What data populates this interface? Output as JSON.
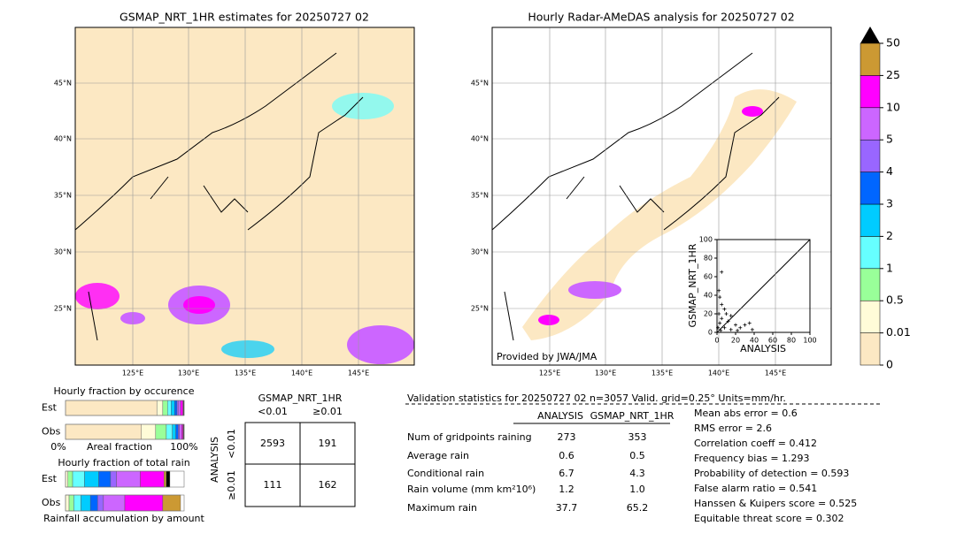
{
  "left_map": {
    "title": "GSMAP_NRT_1HR estimates for 20250727 02",
    "lat_labels": [
      "45°N",
      "40°N",
      "35°N",
      "30°N",
      "25°N"
    ],
    "lon_labels": [
      "125°E",
      "130°E",
      "135°E",
      "140°E",
      "145°E"
    ]
  },
  "right_map": {
    "title": "Hourly Radar-AMeDAS analysis for 20250727 02",
    "lat_labels": [
      "45°N",
      "40°N",
      "35°N",
      "30°N",
      "25°N"
    ],
    "lon_labels": [
      "125°E",
      "130°E",
      "135°E",
      "140°E",
      "145°E"
    ],
    "credit": "Provided by JWA/JMA"
  },
  "colorbar": {
    "labels": [
      "0",
      "0.01",
      "0.5",
      "1",
      "2",
      "3",
      "4",
      "5",
      "10",
      "25",
      "50"
    ],
    "colors": [
      "#fce8c3",
      "#fffcd8",
      "#99ff99",
      "#66ffff",
      "#00ccff",
      "#0066ff",
      "#9966ff",
      "#cc66ff",
      "#ff00ff",
      "#cc9933"
    ],
    "over_color": "#000000"
  },
  "scatter": {
    "type": "scatter",
    "x_label": "ANALYSIS",
    "y_label": "GSMAP_NRT_1HR",
    "xlim": [
      0,
      100
    ],
    "ylim": [
      0,
      100
    ],
    "xticks": [
      0,
      20,
      40,
      60,
      80,
      100
    ],
    "yticks": [
      0,
      20,
      40,
      60,
      80,
      100
    ],
    "x": [
      5,
      2,
      3,
      5,
      8,
      2,
      10,
      5,
      15,
      3,
      12,
      20,
      25,
      30,
      35,
      8,
      15,
      4,
      22,
      1,
      38
    ],
    "y": [
      65,
      45,
      38,
      30,
      25,
      20,
      20,
      15,
      18,
      10,
      12,
      8,
      5,
      8,
      10,
      5,
      3,
      2,
      2,
      5,
      3
    ]
  },
  "occurrence": {
    "title": "Hourly fraction by occurence",
    "est_label": "Est",
    "obs_label": "Obs",
    "x_left": "0%",
    "x_mid": "Areal fraction",
    "x_right": "100%",
    "est": [
      0.77,
      0.05,
      0.04,
      0.03,
      0.03,
      0.02,
      0.01,
      0.02,
      0.02,
      0.005,
      0.005
    ],
    "obs": [
      0.64,
      0.12,
      0.09,
      0.05,
      0.03,
      0.02,
      0.01,
      0.02,
      0.01,
      0.005,
      0.005
    ]
  },
  "total_rain": {
    "title": "Hourly fraction of total rain",
    "est_label": "Est",
    "obs_label": "Obs",
    "footer": "Rainfall accumulation by amount",
    "est": [
      0,
      0.02,
      0.04,
      0.1,
      0.12,
      0.1,
      0.05,
      0.2,
      0.2,
      0.02,
      0.03
    ],
    "obs": [
      0,
      0.03,
      0.04,
      0.06,
      0.08,
      0.06,
      0.05,
      0.18,
      0.32,
      0.15,
      0
    ]
  },
  "contingency": {
    "title": "GSMAP_NRT_1HR",
    "col_labels": [
      "<0.01",
      "≥0.01"
    ],
    "row_title": "ANALYSIS",
    "row_labels": [
      "<0.01",
      "≥0.01"
    ],
    "cells": [
      [
        "2593",
        "191"
      ],
      [
        "111",
        "162"
      ]
    ]
  },
  "validation": {
    "header": "Validation statistics for 20250727 02  n=3057 Valid. grid=0.25° Units=mm/hr.",
    "columns": [
      "ANALYSIS",
      "GSMAP_NRT_1HR"
    ],
    "rows": [
      [
        "Num of gridpoints raining",
        "273",
        "353"
      ],
      [
        "Average rain",
        "0.6",
        "0.5"
      ],
      [
        "Conditional rain",
        "6.7",
        "4.3"
      ],
      [
        "Rain volume (mm km²10⁶)",
        "1.2",
        "1.0"
      ],
      [
        "Maximum rain",
        "37.7",
        "65.2"
      ]
    ],
    "scores": [
      "Mean abs error =    0.6",
      "RMS error =    2.6",
      "Correlation coeff =  0.412",
      "Frequency bias =  1.293",
      "Probability of detection =  0.593",
      "False alarm ratio =  0.541",
      "Hanssen & Kuipers score =  0.525",
      "Equitable threat score =  0.302"
    ]
  }
}
